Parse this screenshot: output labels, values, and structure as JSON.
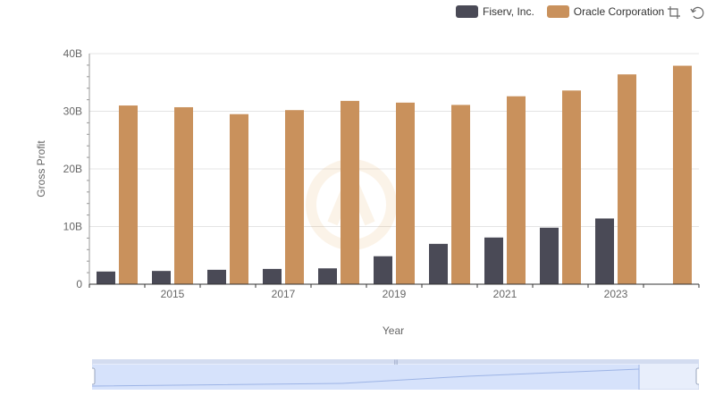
{
  "legend": [
    {
      "name": "Fiserv, Inc.",
      "color": "#4a4a56"
    },
    {
      "name": "Oracle Corporation",
      "color": "#c9915c"
    }
  ],
  "toolbox": {
    "zoom_icon": "zoom-select-icon",
    "restore_icon": "restore-icon"
  },
  "chart_data": {
    "type": "bar",
    "x": [
      2014,
      2015,
      2016,
      2017,
      2018,
      2019,
      2020,
      2021,
      2022,
      2023,
      2024
    ],
    "x_tick_labels": [
      "2015",
      "2017",
      "2019",
      "2021",
      "2023"
    ],
    "xlabel": "Year",
    "ylabel": "Gross Profit",
    "ylim": [
      0,
      40000000000
    ],
    "y_tick_labels": [
      "0",
      "10B",
      "20B",
      "30B",
      "40B"
    ],
    "grid": true,
    "legend_position": "top-right",
    "series": [
      {
        "name": "Fiserv, Inc.",
        "color": "#4a4a56",
        "values": [
          2200000000,
          2300000000,
          2500000000,
          2650000000,
          2750000000,
          4850000000,
          7000000000,
          8100000000,
          9800000000,
          11400000000,
          null
        ]
      },
      {
        "name": "Oracle Corporation",
        "color": "#c9915c",
        "values": [
          31000000000,
          30700000000,
          29500000000,
          30200000000,
          31800000000,
          31500000000,
          31100000000,
          32600000000,
          33600000000,
          36400000000,
          37900000000
        ]
      }
    ]
  }
}
